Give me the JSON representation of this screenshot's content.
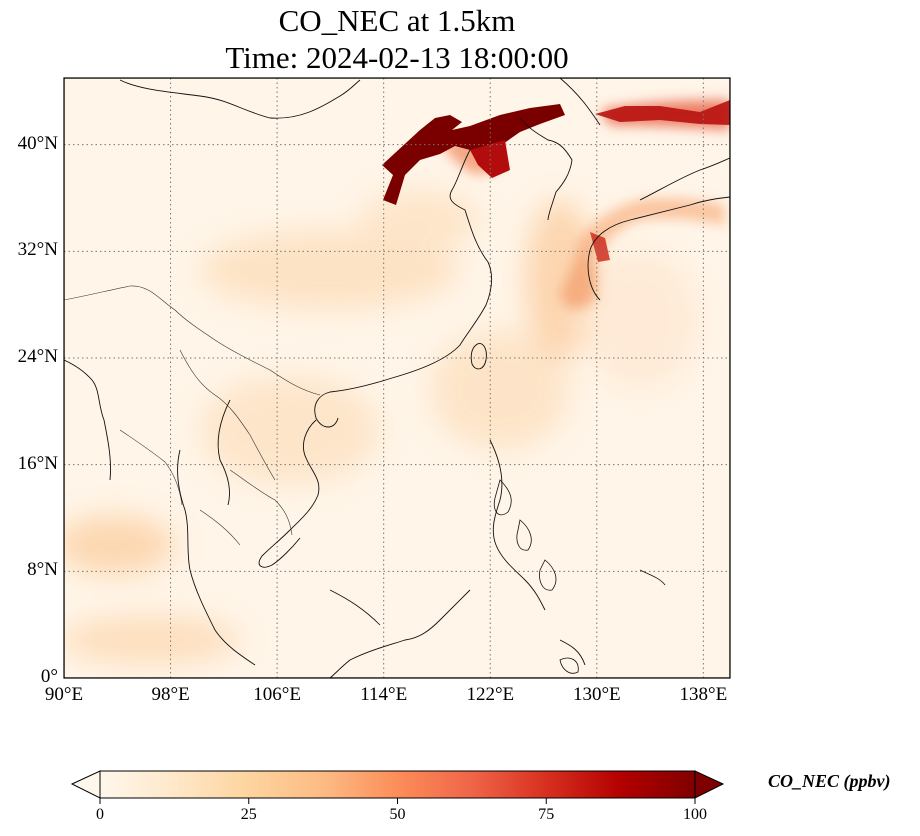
{
  "title": {
    "line1": "CO_NEC at 1.5km",
    "line2": "Time: 2024-02-13 18:00:00"
  },
  "map": {
    "variable": "CO_NEC",
    "level": "1.5km",
    "time": "2024-02-13 18:00:00",
    "extent": {
      "lon": [
        90,
        140
      ],
      "lat": [
        0,
        45
      ]
    },
    "x_ticks": [
      {
        "lon": 90,
        "label": "90°E"
      },
      {
        "lon": 98,
        "label": "98°E"
      },
      {
        "lon": 106,
        "label": "106°E"
      },
      {
        "lon": 114,
        "label": "114°E"
      },
      {
        "lon": 122,
        "label": "122°E"
      },
      {
        "lon": 130,
        "label": "130°E"
      },
      {
        "lon": 138,
        "label": "138°E"
      }
    ],
    "y_ticks": [
      {
        "lat": 0,
        "label": "0°"
      },
      {
        "lat": 8,
        "label": "8°N"
      },
      {
        "lat": 16,
        "label": "16°N"
      },
      {
        "lat": 24,
        "label": "24°N"
      },
      {
        "lat": 32,
        "label": "32°N"
      },
      {
        "lat": 40,
        "label": "40°N"
      }
    ],
    "gridlines": "dotted",
    "high_concentration_regions": [
      "North China Plain / Bohai region (~115-127°E, 36-42°N)",
      "Sea of Japan plume (~130-140°E, 41-43°N)",
      "Off southern Japan (~129-131°E, 31-35°N)"
    ]
  },
  "colorbar": {
    "label": "CO_NEC (ppbv)",
    "min": 0,
    "max": 100,
    "ticks": [
      "0",
      "25",
      "50",
      "75",
      "100"
    ],
    "extend": "both",
    "colormap": "OrRd",
    "colors": [
      "#fff7ec",
      "#fee8c8",
      "#fdd49e",
      "#fdbb84",
      "#fc8d59",
      "#ef6548",
      "#d7301f",
      "#b30000",
      "#7f0000"
    ]
  }
}
